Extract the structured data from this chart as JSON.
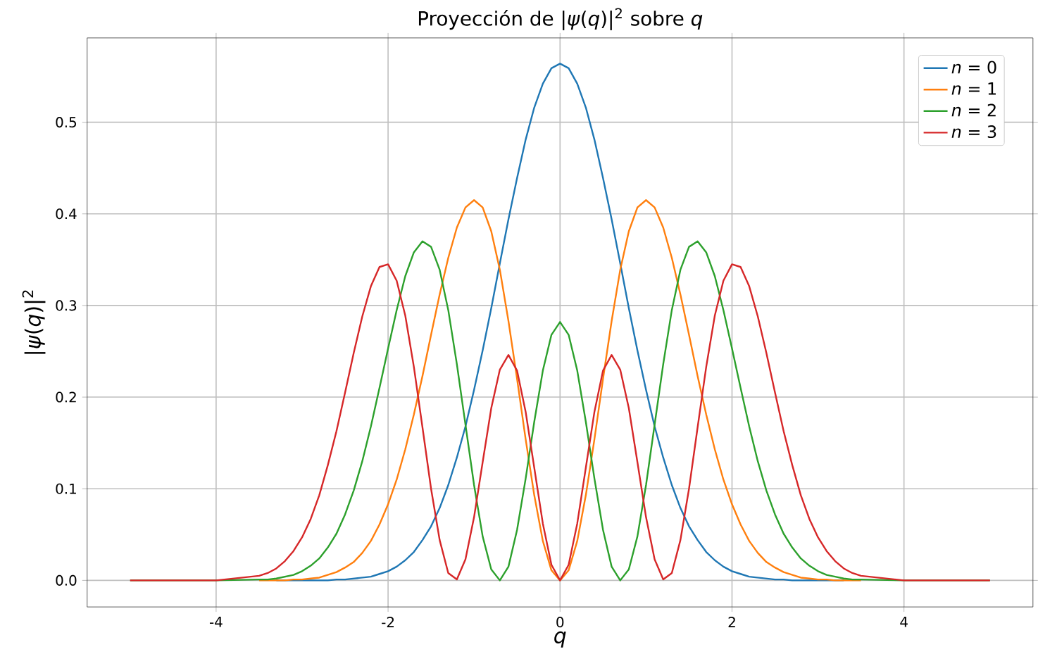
{
  "chart_data": {
    "type": "line",
    "title": "Proyección de |*ψ*(*q*)|$^{2}$ sobre *q*",
    "xlabel": "*q*",
    "ylabel": "|*ψ*(*q*)|$^{2}$",
    "x": [
      -5,
      -4,
      -3.5,
      -3.4,
      -3.3,
      -3.2,
      -3.1,
      -3,
      -2.9,
      -2.8,
      -2.7,
      -2.6,
      -2.5,
      -2.4,
      -2.3,
      -2.2,
      -2.1,
      -2,
      -1.9,
      -1.8,
      -1.7,
      -1.6,
      -1.5,
      -1.4,
      -1.3,
      -1.2,
      -1.1,
      -1,
      -0.9,
      -0.8,
      -0.7,
      -0.6,
      -0.5,
      -0.4,
      -0.3,
      -0.2,
      -0.1,
      0,
      0.1,
      0.2,
      0.3,
      0.4,
      0.5,
      0.6,
      0.7,
      0.8,
      0.9,
      1,
      1.1,
      1.2,
      1.3,
      1.4,
      1.5,
      1.6,
      1.7,
      1.8,
      1.9,
      2,
      2.1,
      2.2,
      2.3,
      2.4,
      2.5,
      2.6,
      2.7,
      2.8,
      2.9,
      3,
      3.1,
      3.2,
      3.3,
      3.4,
      3.5,
      4,
      5
    ],
    "series": [
      {
        "name": "*n* = 0",
        "color": "#1f77b4",
        "values": [
          null,
          null,
          null,
          null,
          0,
          0,
          0,
          0,
          0,
          0,
          0,
          0.001,
          0.001,
          0.002,
          0.003,
          0.004,
          0.007,
          0.01,
          0.015,
          0.022,
          0.031,
          0.044,
          0.059,
          0.079,
          0.104,
          0.134,
          0.168,
          0.208,
          0.251,
          0.297,
          0.346,
          0.394,
          0.439,
          0.481,
          0.516,
          0.542,
          0.559,
          0.564,
          0.559,
          0.542,
          0.516,
          0.481,
          0.439,
          0.394,
          0.346,
          0.297,
          0.251,
          0.208,
          0.168,
          0.134,
          0.104,
          0.079,
          0.059,
          0.044,
          0.031,
          0.022,
          0.015,
          0.01,
          0.007,
          0.004,
          0.003,
          0.002,
          0.001,
          0.001,
          0,
          0,
          0,
          0,
          0,
          0,
          0,
          null,
          null,
          null,
          null
        ]
      },
      {
        "name": "*n* = 1",
        "color": "#ff7f0e",
        "values": [
          null,
          null,
          0,
          0,
          0,
          0,
          0.001,
          0.001,
          0.002,
          0.003,
          0.006,
          0.009,
          0.014,
          0.02,
          0.03,
          0.043,
          0.061,
          0.083,
          0.11,
          0.143,
          0.181,
          0.223,
          0.268,
          0.312,
          0.352,
          0.385,
          0.407,
          0.415,
          0.407,
          0.381,
          0.339,
          0.283,
          0.22,
          0.154,
          0.093,
          0.043,
          0.011,
          0,
          0.011,
          0.043,
          0.093,
          0.154,
          0.22,
          0.283,
          0.339,
          0.381,
          0.407,
          0.415,
          0.407,
          0.385,
          0.352,
          0.312,
          0.268,
          0.223,
          0.181,
          0.143,
          0.11,
          0.083,
          0.061,
          0.043,
          0.03,
          0.02,
          0.014,
          0.009,
          0.006,
          0.003,
          0.002,
          0.001,
          0.001,
          0,
          0,
          0,
          0,
          null,
          null
        ]
      },
      {
        "name": "*n* = 2",
        "color": "#2ca02c",
        "values": [
          0,
          0,
          0.001,
          0.001,
          0.002,
          0.004,
          0.006,
          0.01,
          0.016,
          0.024,
          0.036,
          0.051,
          0.072,
          0.098,
          0.13,
          0.168,
          0.21,
          0.253,
          0.295,
          0.332,
          0.358,
          0.37,
          0.364,
          0.339,
          0.295,
          0.236,
          0.17,
          0.104,
          0.048,
          0.012,
          0,
          0.015,
          0.055,
          0.111,
          0.173,
          0.229,
          0.268,
          0.282,
          0.268,
          0.229,
          0.173,
          0.111,
          0.055,
          0.015,
          0,
          0.012,
          0.048,
          0.104,
          0.17,
          0.236,
          0.295,
          0.339,
          0.364,
          0.37,
          0.358,
          0.332,
          0.295,
          0.253,
          0.21,
          0.168,
          0.13,
          0.098,
          0.072,
          0.051,
          0.036,
          0.024,
          0.016,
          0.01,
          0.006,
          0.004,
          0.002,
          0.001,
          0.001,
          0,
          0
        ]
      },
      {
        "name": "*n* = 3",
        "color": "#d62728",
        "values": [
          0,
          0,
          0.005,
          0.008,
          0.013,
          0.021,
          0.032,
          0.047,
          0.067,
          0.093,
          0.126,
          0.163,
          0.205,
          0.248,
          0.288,
          0.321,
          0.342,
          0.345,
          0.327,
          0.289,
          0.233,
          0.167,
          0.1,
          0.044,
          0.008,
          0.001,
          0.023,
          0.069,
          0.129,
          0.188,
          0.23,
          0.246,
          0.229,
          0.184,
          0.123,
          0.062,
          0.017,
          0,
          0.017,
          0.062,
          0.123,
          0.184,
          0.229,
          0.246,
          0.23,
          0.188,
          0.129,
          0.069,
          0.023,
          0.001,
          0.008,
          0.044,
          0.1,
          0.167,
          0.233,
          0.289,
          0.327,
          0.345,
          0.342,
          0.321,
          0.288,
          0.248,
          0.205,
          0.163,
          0.126,
          0.093,
          0.067,
          0.047,
          0.032,
          0.021,
          0.013,
          0.008,
          0.005,
          0,
          0
        ]
      }
    ],
    "xlim": [
      -5.5,
      5.5
    ],
    "ylim": [
      -0.029,
      0.592
    ],
    "xticks": [
      -4,
      -2,
      0,
      2,
      4
    ],
    "yticks": [
      {
        "value": 0,
        "label": "0.0"
      },
      {
        "value": 0.1,
        "label": "0.1"
      },
      {
        "value": 0.2,
        "label": "0.2"
      },
      {
        "value": 0.3,
        "label": "0.3"
      },
      {
        "value": 0.4,
        "label": "0.4"
      },
      {
        "value": 0.5,
        "label": "0.5"
      }
    ],
    "grid": true,
    "legend": "top right"
  }
}
